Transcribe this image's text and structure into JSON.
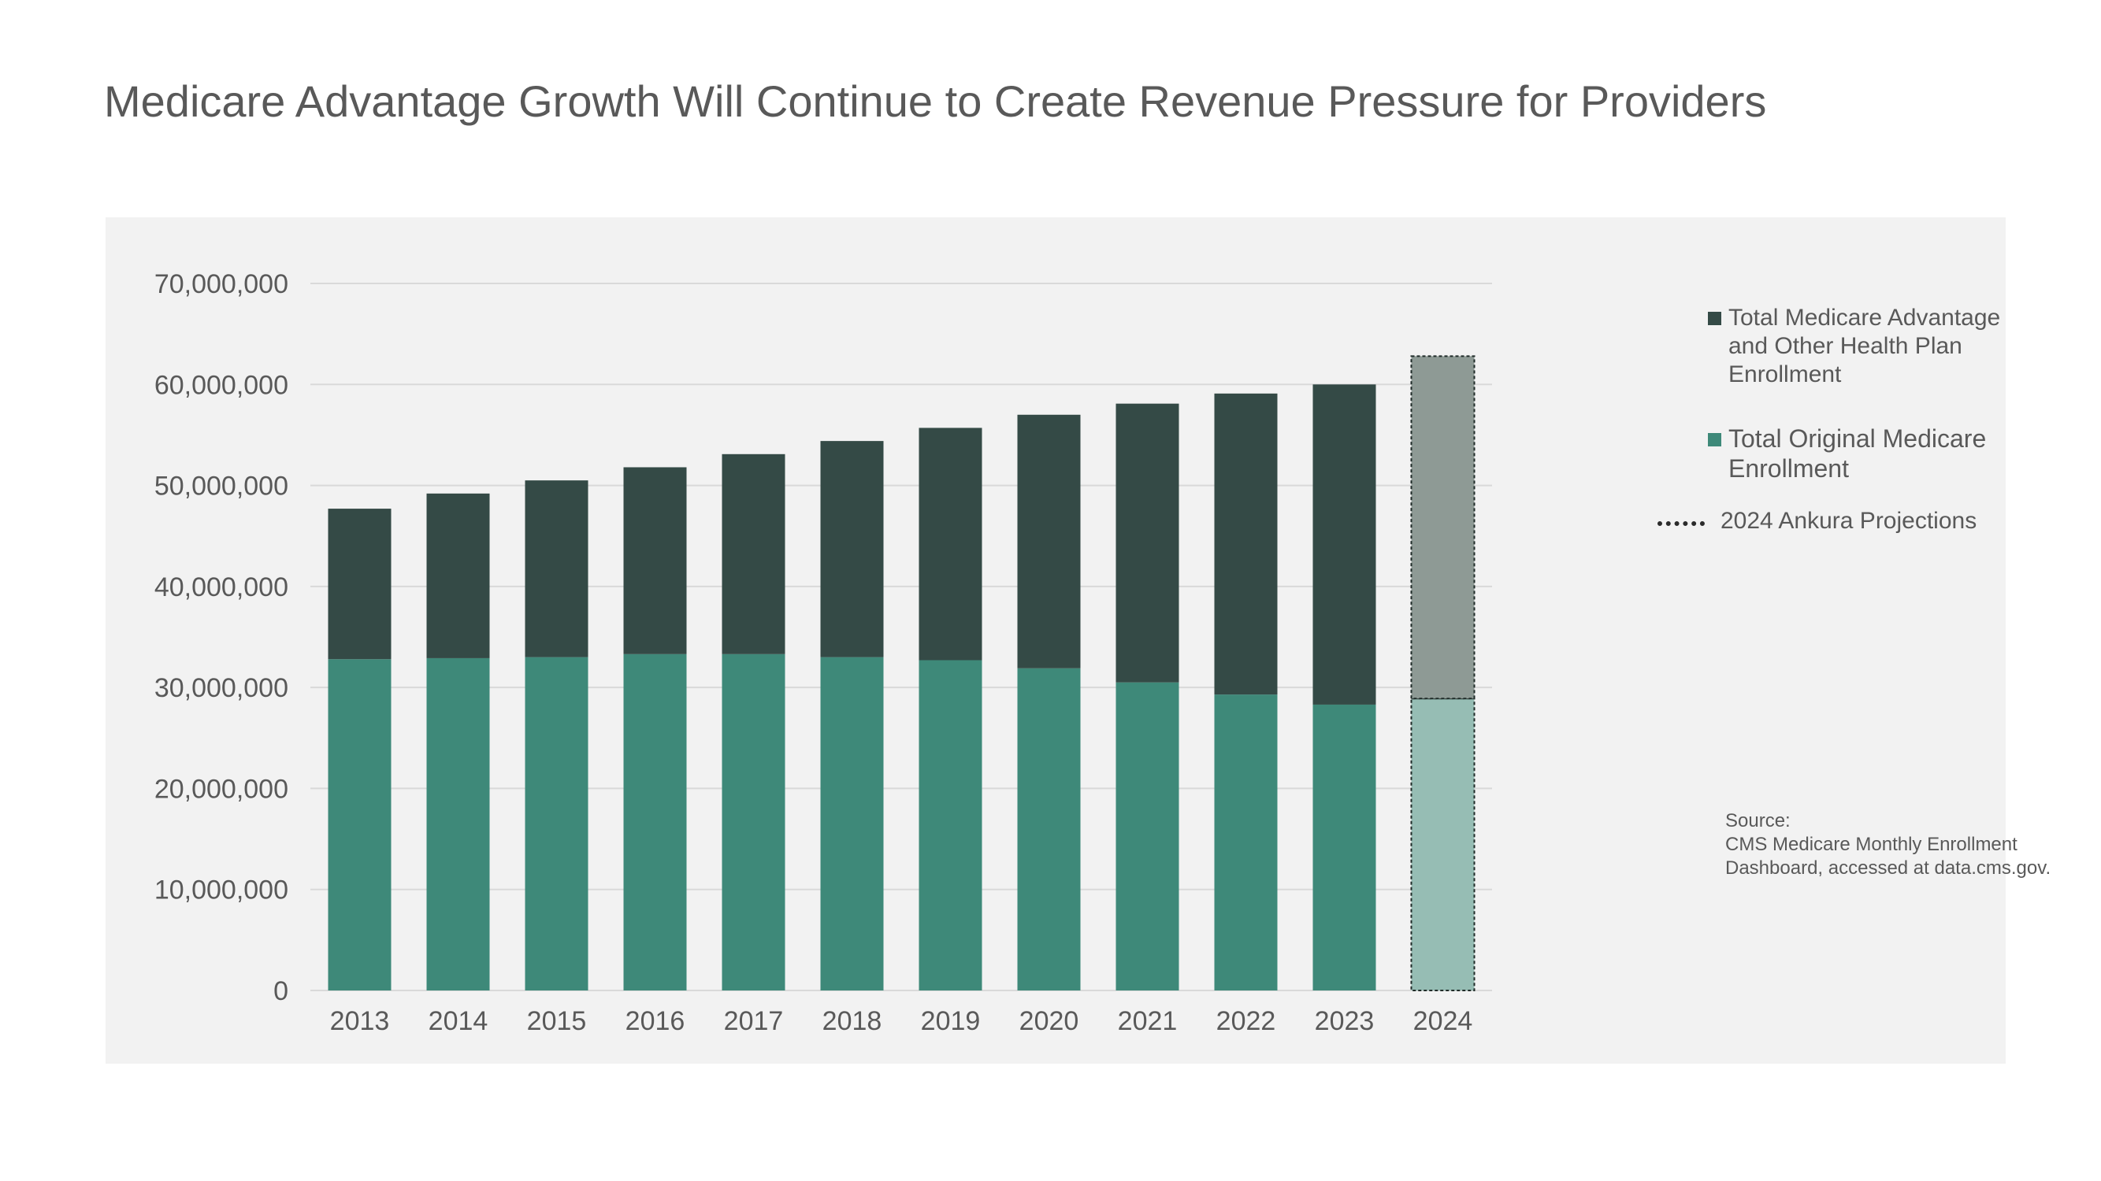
{
  "title": "Medicare Advantage Growth Will Continue to Create Revenue Pressure for Providers",
  "colors": {
    "advantage": "#344a46",
    "original": "#3e8979",
    "projection_advantage": "#8e9a95",
    "projection_original": "#96bdb4",
    "grid": "#d9d9d9",
    "panel": "#f2f2f2"
  },
  "chart_data": {
    "type": "bar",
    "stacked": true,
    "categories": [
      "2013",
      "2014",
      "2015",
      "2016",
      "2017",
      "2018",
      "2019",
      "2020",
      "2021",
      "2022",
      "2023",
      "2024"
    ],
    "series": [
      {
        "name": "Total Original Medicare Enrollment",
        "values": [
          32800000,
          32900000,
          33000000,
          33300000,
          33300000,
          33000000,
          32700000,
          31900000,
          30500000,
          29300000,
          28300000,
          28900000
        ]
      },
      {
        "name": "Total Medicare Advantage and Other Health Plan Enrollment",
        "values": [
          14900000,
          16300000,
          17500000,
          18500000,
          19800000,
          21400000,
          23000000,
          25100000,
          27600000,
          29800000,
          31700000,
          33900000
        ]
      }
    ],
    "projection_category": "2024",
    "yticks": [
      "0",
      "10,000,000",
      "20,000,000",
      "30,000,000",
      "40,000,000",
      "50,000,000",
      "60,000,000",
      "70,000,000"
    ],
    "ylim": [
      0,
      70000000
    ],
    "grid": true,
    "legend_position": "right"
  },
  "legend": {
    "advantage_lines": [
      "Total Medicare Advantage",
      "and Other Health Plan",
      "Enrollment"
    ],
    "original_lines": [
      "Total Original Medicare",
      "Enrollment"
    ],
    "projection": "2024 Ankura Projections"
  },
  "source": {
    "label": "Source:",
    "line1": "CMS Medicare Monthly Enrollment",
    "line2": "Dashboard, accessed at data.cms.gov."
  }
}
